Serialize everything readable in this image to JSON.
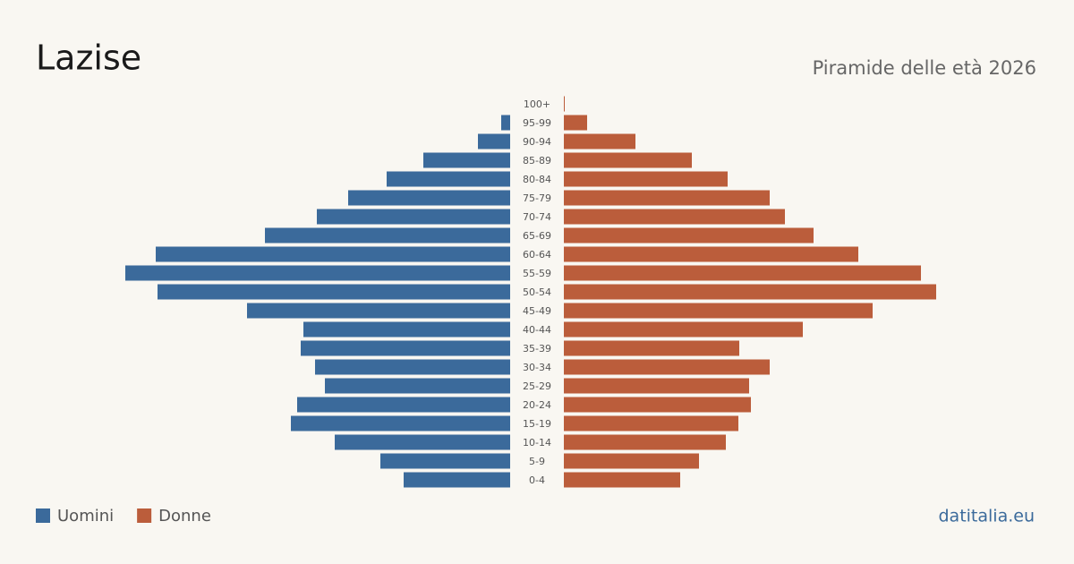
{
  "chart_data": {
    "type": "pyramid",
    "title": "Lazise",
    "subtitle": "Piramide delle età 2026",
    "source": "datitalia.eu",
    "categories": [
      "100+",
      "95-99",
      "90-94",
      "85-89",
      "80-84",
      "75-79",
      "70-74",
      "65-69",
      "60-64",
      "55-59",
      "50-54",
      "45-49",
      "40-44",
      "35-39",
      "30-34",
      "25-29",
      "20-24",
      "15-19",
      "10-14",
      "5-9",
      "0-4"
    ],
    "series": [
      {
        "name": "Uomini",
        "color": "#3b6a9b",
        "values": [
          0,
          10,
          36,
          97,
          138,
          181,
          216,
          274,
          396,
          430,
          394,
          294,
          231,
          234,
          218,
          207,
          238,
          245,
          196,
          145,
          119
        ]
      },
      {
        "name": "Donne",
        "color": "#bb5d3b",
        "values": [
          1,
          26,
          80,
          143,
          183,
          230,
          247,
          279,
          329,
          399,
          416,
          345,
          267,
          196,
          230,
          207,
          209,
          195,
          181,
          151,
          130
        ]
      }
    ],
    "xlim": [
      0,
      440
    ]
  }
}
